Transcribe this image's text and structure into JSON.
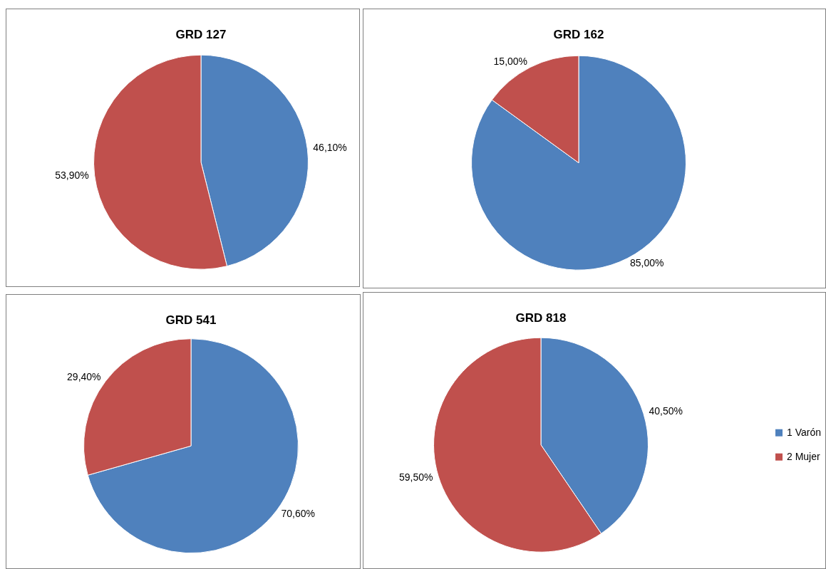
{
  "chart_data": [
    {
      "type": "pie",
      "title": "GRD 127",
      "categories": [
        null,
        null
      ],
      "values": [
        46.1,
        53.9
      ],
      "colors": [
        "#4f81bd",
        "#c0504d"
      ],
      "value_labels": [
        "46,10%",
        "53,90%"
      ]
    },
    {
      "type": "pie",
      "title": "GRD 162",
      "categories": [
        null,
        null
      ],
      "values": [
        85.0,
        15.0
      ],
      "colors": [
        "#4f81bd",
        "#c0504d"
      ],
      "value_labels": [
        "85,00%",
        "15,00%"
      ]
    },
    {
      "type": "pie",
      "title": "GRD 541",
      "categories": [
        null,
        null
      ],
      "values": [
        70.6,
        29.4
      ],
      "colors": [
        "#4f81bd",
        "#c0504d"
      ],
      "value_labels": [
        "70,60%",
        "29,40%"
      ]
    },
    {
      "type": "pie",
      "title": "GRD 818",
      "categories": [
        "1 Varón",
        "2 Mujer"
      ],
      "values": [
        40.5,
        59.5
      ],
      "colors": [
        "#4f81bd",
        "#c0504d"
      ],
      "value_labels": [
        "40,50%",
        "59,50%"
      ],
      "legend": "right"
    }
  ]
}
